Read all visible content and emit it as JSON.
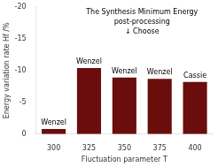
{
  "chart_data": {
    "type": "bar",
    "title": "The Synthesis Minimum Energy",
    "subtitle": "post-processing",
    "x_label": "Fluctuation parameter T",
    "y_label": "Energy variation rate Hf /%",
    "categories": [
      300,
      325,
      350,
      375,
      400
    ],
    "values": [
      -0.8,
      -10.4,
      -8.9,
      -8.7,
      -8.2
    ],
    "color": "#6b0d0d",
    "ylim": [
      -20,
      0
    ],
    "yticks": [
      -20,
      -15,
      -10,
      -5,
      0
    ],
    "grid": false,
    "annotations": [
      {
        "text": "↓ Choose"
      },
      {
        "category": 300,
        "text": "Wenzel"
      },
      {
        "category": 325,
        "text": "Wenzel"
      },
      {
        "category": 350,
        "text": "Wenzel"
      },
      {
        "category": 375,
        "text": "Wenzel"
      },
      {
        "category": 400,
        "text": "Cassie"
      }
    ]
  }
}
